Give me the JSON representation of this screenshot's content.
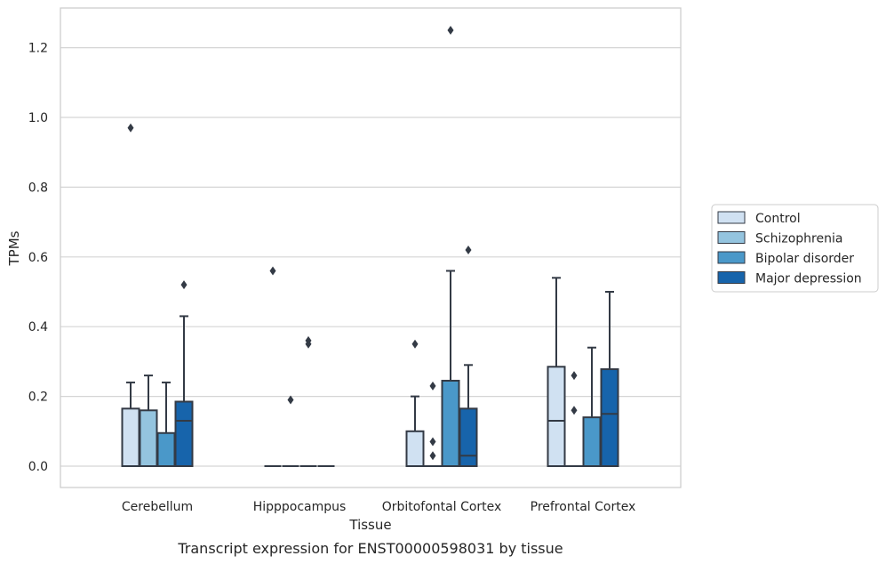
{
  "chart_data": {
    "type": "box",
    "caption": "Transcript expression for ENST00000598031 by tissue",
    "xlabel": "Tissue",
    "ylabel": "TPMs",
    "ylim": [
      -0.06,
      1.32
    ],
    "yticks": [
      "0.0",
      "0.2",
      "0.4",
      "0.6",
      "0.8",
      "1.0",
      "1.2"
    ],
    "grid": true,
    "legend_position": "right",
    "categories": [
      "Cerebellum",
      "Hipppocampus",
      "Orbitofontal Cortex",
      "Prefrontal Cortex"
    ],
    "series": [
      {
        "name": "Control",
        "color": "#d0e1f2",
        "boxes": [
          {
            "q1": 0.0,
            "median": 0.0,
            "q3": 0.165,
            "whisker_low": 0.0,
            "whisker_high": 0.24,
            "outliers": [
              0.97
            ]
          },
          {
            "q1": 0.0,
            "median": 0.0,
            "q3": 0.0,
            "whisker_low": 0.0,
            "whisker_high": 0.0,
            "outliers": [
              0.56
            ]
          },
          {
            "q1": 0.0,
            "median": 0.0,
            "q3": 0.1,
            "whisker_low": 0.0,
            "whisker_high": 0.2,
            "outliers": [
              0.35
            ]
          },
          {
            "q1": 0.0,
            "median": 0.13,
            "q3": 0.285,
            "whisker_low": 0.0,
            "whisker_high": 0.54,
            "outliers": []
          }
        ]
      },
      {
        "name": "Schizophrenia",
        "color": "#94c4df",
        "boxes": [
          {
            "q1": 0.0,
            "median": 0.0,
            "q3": 0.16,
            "whisker_low": 0.0,
            "whisker_high": 0.26,
            "outliers": []
          },
          {
            "q1": 0.0,
            "median": 0.0,
            "q3": 0.0,
            "whisker_low": 0.0,
            "whisker_high": 0.0,
            "outliers": [
              0.19
            ]
          },
          {
            "q1": 0.0,
            "median": 0.0,
            "q3": 0.0,
            "whisker_low": 0.0,
            "whisker_high": 0.0,
            "outliers": [
              0.23,
              0.07,
              0.03
            ]
          },
          {
            "q1": 0.0,
            "median": 0.0,
            "q3": 0.0,
            "whisker_low": 0.0,
            "whisker_high": 0.0,
            "outliers": [
              0.26,
              0.16
            ]
          }
        ]
      },
      {
        "name": "Bipolar disorder",
        "color": "#4a98c9",
        "boxes": [
          {
            "q1": 0.0,
            "median": 0.0,
            "q3": 0.095,
            "whisker_low": 0.0,
            "whisker_high": 0.24,
            "outliers": []
          },
          {
            "q1": 0.0,
            "median": 0.0,
            "q3": 0.0,
            "whisker_low": 0.0,
            "whisker_high": 0.0,
            "outliers": [
              0.36,
              0.35
            ]
          },
          {
            "q1": 0.0,
            "median": 0.0,
            "q3": 0.245,
            "whisker_low": 0.0,
            "whisker_high": 0.56,
            "outliers": [
              1.25
            ]
          },
          {
            "q1": 0.0,
            "median": 0.0,
            "q3": 0.14,
            "whisker_low": 0.0,
            "whisker_high": 0.34,
            "outliers": []
          }
        ]
      },
      {
        "name": "Major depression",
        "color": "#1764ab",
        "boxes": [
          {
            "q1": 0.0,
            "median": 0.13,
            "q3": 0.185,
            "whisker_low": 0.0,
            "whisker_high": 0.43,
            "outliers": [
              0.52
            ]
          },
          {
            "q1": 0.0,
            "median": 0.0,
            "q3": 0.0,
            "whisker_low": 0.0,
            "whisker_high": 0.0,
            "outliers": []
          },
          {
            "q1": 0.0,
            "median": 0.03,
            "q3": 0.165,
            "whisker_low": 0.0,
            "whisker_high": 0.29,
            "outliers": [
              0.62
            ]
          },
          {
            "q1": 0.0,
            "median": 0.15,
            "q3": 0.278,
            "whisker_low": 0.0,
            "whisker_high": 0.5,
            "outliers": []
          }
        ]
      }
    ]
  }
}
